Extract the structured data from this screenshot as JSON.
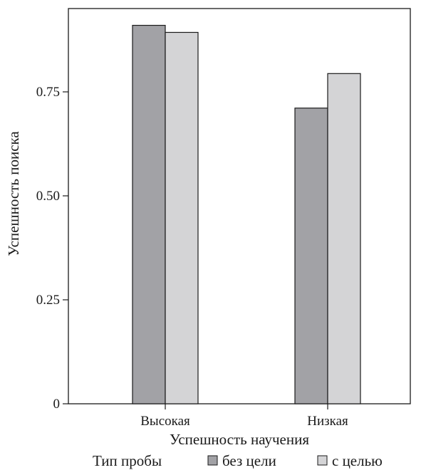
{
  "chart_data": {
    "type": "bar",
    "xlabel": "Успешность научения",
    "ylabel": "Успешность поиска",
    "categories": [
      "Высокая",
      "Низкая"
    ],
    "series": [
      {
        "name": "без цели",
        "color": "#a2a2a6",
        "values": [
          0.91,
          0.711
        ]
      },
      {
        "name": "с целью",
        "color": "#d4d4d6",
        "values": [
          0.893,
          0.794
        ]
      }
    ],
    "ylim": [
      0,
      0.95
    ],
    "yticks": [
      0,
      0.25,
      0.5,
      0.75
    ],
    "ytick_labels": [
      "0",
      "0.25",
      "0.50",
      "0.75"
    ],
    "grid": false,
    "legend": {
      "title": "Тип пробы",
      "position": "bottom"
    }
  }
}
